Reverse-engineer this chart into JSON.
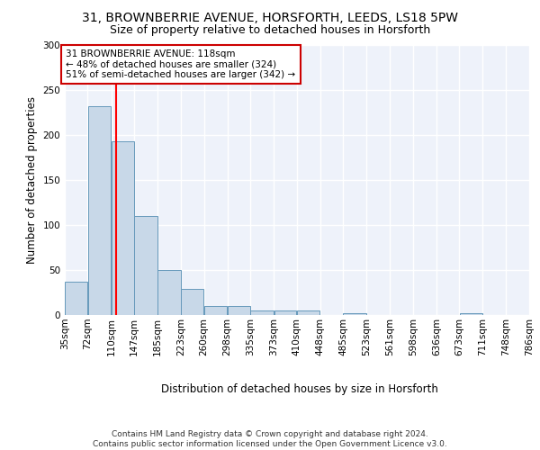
{
  "title1": "31, BROWNBERRIE AVENUE, HORSFORTH, LEEDS, LS18 5PW",
  "title2": "Size of property relative to detached houses in Horsforth",
  "xlabel": "Distribution of detached houses by size in Horsforth",
  "ylabel": "Number of detached properties",
  "footnote1": "Contains HM Land Registry data © Crown copyright and database right 2024.",
  "footnote2": "Contains public sector information licensed under the Open Government Licence v3.0.",
  "bin_edges": [
    35,
    72,
    110,
    147,
    185,
    223,
    260,
    298,
    335,
    373,
    410,
    448,
    485,
    523,
    561,
    598,
    636,
    673,
    711,
    748,
    786
  ],
  "bar_heights": [
    37,
    232,
    193,
    110,
    50,
    29,
    10,
    10,
    5,
    5,
    5,
    0,
    2,
    0,
    0,
    0,
    0,
    2,
    0,
    0
  ],
  "bar_color": "#c8d8e8",
  "bar_edge_color": "#6699bb",
  "red_line_x": 118,
  "annotation_text": "31 BROWNBERRIE AVENUE: 118sqm\n← 48% of detached houses are smaller (324)\n51% of semi-detached houses are larger (342) →",
  "ylim": [
    0,
    300
  ],
  "yticks": [
    0,
    50,
    100,
    150,
    200,
    250,
    300
  ],
  "background_color": "#eef2fa",
  "grid_color": "#ffffff",
  "annotation_box_color": "#ffffff",
  "annotation_box_edge": "#cc0000",
  "title1_fontsize": 10,
  "title2_fontsize": 9,
  "axis_label_fontsize": 8.5,
  "tick_fontsize": 7.5,
  "annotation_fontsize": 7.5,
  "footnote_fontsize": 6.5
}
